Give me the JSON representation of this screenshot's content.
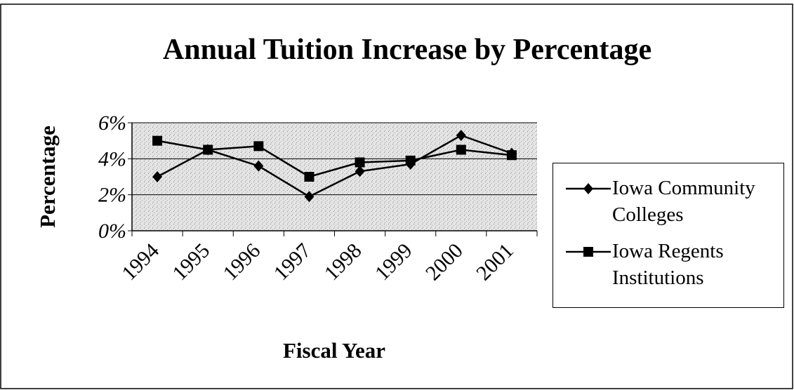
{
  "chart_data": {
    "type": "line",
    "title": "Annual Tuition Increase by Percentage",
    "x_label": "Fiscal Year",
    "y_label": "Percentage",
    "categories": [
      "1994",
      "1995",
      "1996",
      "1997",
      "1998",
      "1999",
      "2000",
      "2001"
    ],
    "series": [
      {
        "name": "Iowa Community Colleges",
        "color": "#000000",
        "marker": "diamond",
        "values": [
          3.0,
          4.5,
          3.6,
          1.9,
          3.3,
          3.7,
          5.3,
          4.3
        ]
      },
      {
        "name": "Iowa Regents Institutions",
        "color": "#000000",
        "marker": "square",
        "values": [
          5.0,
          4.5,
          4.7,
          3.0,
          3.8,
          3.9,
          4.5,
          4.2
        ]
      }
    ],
    "ylim": [
      0,
      6
    ],
    "yticks": [
      {
        "value": 0,
        "label": "0%"
      },
      {
        "value": 2,
        "label": "2%"
      },
      {
        "value": 4,
        "label": "4%"
      },
      {
        "value": 6,
        "label": "6%"
      }
    ],
    "grid": true,
    "legend": "right"
  }
}
